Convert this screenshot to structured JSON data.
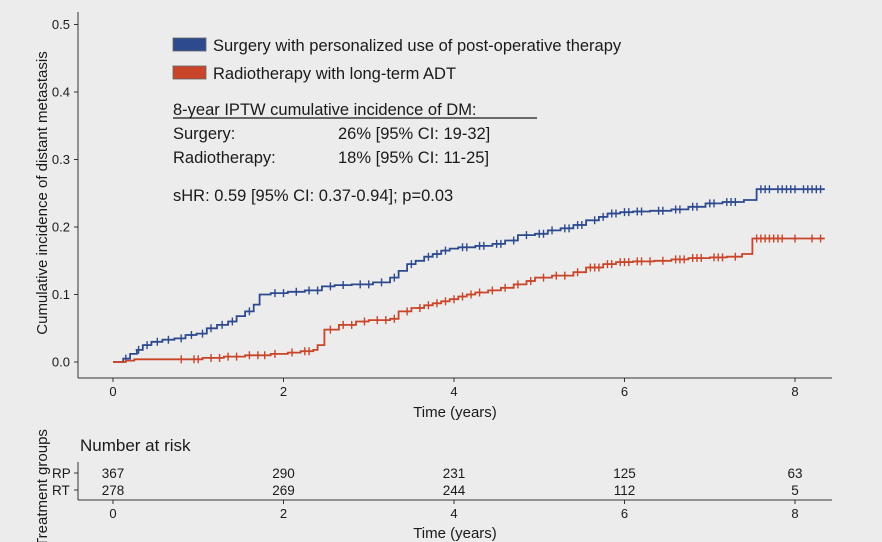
{
  "chart_data": {
    "type": "line",
    "subtype": "step",
    "xlabel": "Time (years)",
    "ylabel": "Cumulative incidence of distant metastasis",
    "xlim": [
      0,
      8.4
    ],
    "ylim": [
      0,
      0.5
    ],
    "x_ticks": [
      "0",
      "2",
      "4",
      "6",
      "8"
    ],
    "x_tick_values": [
      0,
      2,
      4,
      6,
      8
    ],
    "y_ticks": [
      "0.0",
      "0.1",
      "0.2",
      "0.3",
      "0.4",
      "0.5"
    ],
    "y_tick_values": [
      0,
      0.1,
      0.2,
      0.3,
      0.4,
      0.5
    ],
    "grid": false,
    "legend_position": "top-left",
    "series": [
      {
        "name": "Surgery with personalized use of post-operative therapy",
        "color": "#2e4a8e",
        "x": [
          0,
          0.12,
          0.2,
          0.28,
          0.35,
          0.45,
          0.58,
          0.72,
          0.85,
          0.98,
          1.1,
          1.22,
          1.35,
          1.45,
          1.55,
          1.65,
          1.72,
          1.85,
          2.05,
          2.25,
          2.45,
          2.6,
          2.8,
          3.05,
          3.25,
          3.35,
          3.45,
          3.55,
          3.65,
          3.75,
          3.85,
          3.95,
          4.05,
          4.25,
          4.45,
          4.6,
          4.75,
          4.95,
          5.1,
          5.25,
          5.4,
          5.55,
          5.7,
          5.8,
          5.95,
          6.1,
          6.3,
          6.55,
          6.75,
          6.95,
          7.15,
          7.4,
          7.55,
          7.75,
          8.05,
          8.35
        ],
        "y": [
          0,
          0.005,
          0.012,
          0.018,
          0.025,
          0.03,
          0.033,
          0.035,
          0.04,
          0.042,
          0.05,
          0.055,
          0.06,
          0.068,
          0.075,
          0.085,
          0.1,
          0.102,
          0.104,
          0.106,
          0.112,
          0.114,
          0.115,
          0.118,
          0.125,
          0.135,
          0.145,
          0.15,
          0.156,
          0.16,
          0.165,
          0.168,
          0.17,
          0.172,
          0.175,
          0.18,
          0.188,
          0.19,
          0.195,
          0.198,
          0.203,
          0.21,
          0.215,
          0.22,
          0.222,
          0.223,
          0.224,
          0.226,
          0.23,
          0.235,
          0.237,
          0.24,
          0.256,
          0.256,
          0.256,
          0.256
        ],
        "censor_x": [
          0.15,
          0.3,
          0.4,
          0.52,
          0.65,
          0.8,
          0.92,
          1.05,
          1.15,
          1.28,
          1.4,
          1.6,
          1.9,
          2.0,
          2.15,
          2.3,
          2.4,
          2.55,
          2.7,
          2.9,
          3.0,
          3.15,
          3.3,
          3.5,
          3.7,
          3.8,
          3.9,
          4.1,
          4.15,
          4.3,
          4.35,
          4.5,
          4.55,
          4.7,
          4.85,
          5.0,
          5.05,
          5.15,
          5.3,
          5.35,
          5.45,
          5.5,
          5.65,
          5.75,
          5.85,
          5.9,
          6.0,
          6.05,
          6.15,
          6.2,
          6.4,
          6.45,
          6.6,
          6.65,
          6.8,
          6.85,
          7.0,
          7.05,
          7.2,
          7.25,
          7.3,
          7.6,
          7.65,
          7.7,
          7.8,
          7.85,
          7.9,
          7.95,
          8.0,
          8.1,
          8.15,
          8.2,
          8.25,
          8.3
        ]
      },
      {
        "name": "Radiotherapy with long-term ADT",
        "color": "#c8452a",
        "x": [
          0,
          0.15,
          0.25,
          1.05,
          1.3,
          1.55,
          1.85,
          2.05,
          2.2,
          2.35,
          2.4,
          2.48,
          2.65,
          2.85,
          3.0,
          3.25,
          3.35,
          3.5,
          3.65,
          3.75,
          3.85,
          3.95,
          4.05,
          4.15,
          4.25,
          4.4,
          4.55,
          4.7,
          4.85,
          4.95,
          5.15,
          5.4,
          5.55,
          5.75,
          5.9,
          6.1,
          6.35,
          6.55,
          6.75,
          7.0,
          7.2,
          7.38,
          7.5,
          8.35
        ],
        "y": [
          0,
          0.002,
          0.004,
          0.006,
          0.008,
          0.01,
          0.012,
          0.014,
          0.016,
          0.018,
          0.025,
          0.048,
          0.055,
          0.06,
          0.062,
          0.064,
          0.075,
          0.08,
          0.084,
          0.087,
          0.09,
          0.093,
          0.097,
          0.1,
          0.103,
          0.106,
          0.11,
          0.115,
          0.12,
          0.125,
          0.128,
          0.133,
          0.14,
          0.145,
          0.148,
          0.149,
          0.15,
          0.152,
          0.154,
          0.155,
          0.156,
          0.16,
          0.183,
          0.183
        ],
        "censor_x": [
          0.8,
          0.95,
          1.0,
          1.15,
          1.25,
          1.35,
          1.45,
          1.6,
          1.7,
          1.78,
          1.9,
          2.1,
          2.25,
          2.3,
          2.55,
          2.7,
          2.8,
          2.95,
          3.1,
          3.2,
          3.3,
          3.45,
          3.6,
          3.7,
          3.8,
          3.9,
          4.0,
          4.1,
          4.2,
          4.3,
          4.45,
          4.6,
          4.75,
          4.9,
          5.05,
          5.2,
          5.3,
          5.45,
          5.6,
          5.65,
          5.7,
          5.8,
          5.85,
          5.95,
          6.0,
          6.05,
          6.15,
          6.2,
          6.3,
          6.45,
          6.6,
          6.65,
          6.7,
          6.8,
          6.85,
          6.9,
          7.05,
          7.1,
          7.15,
          7.3,
          7.55,
          7.6,
          7.65,
          7.7,
          7.75,
          7.8,
          7.85,
          8.0,
          8.2,
          8.3
        ]
      }
    ],
    "annotations": {
      "heading": "8-year IPTW cumulative incidence of DM:",
      "rows": [
        {
          "label": "Surgery:",
          "value": "26% [95% CI: 19-32]"
        },
        {
          "label": "Radiotherapy:",
          "value": "18% [95% CI: 11-25]"
        }
      ],
      "shr": "sHR: 0.59 [95% CI: 0.37-0.94]; p=0.03"
    },
    "risk_table": {
      "title": "Number at risk",
      "ylabel": "Treatment groups",
      "xlabel": "Time (years)",
      "groups": [
        {
          "label": "RP",
          "color": "#2e4a8e",
          "values": [
            "367",
            "290",
            "231",
            "125",
            "63"
          ]
        },
        {
          "label": "RT",
          "color": "#c8452a",
          "values": [
            "278",
            "269",
            "244",
            "112",
            "5"
          ]
        }
      ]
    }
  }
}
